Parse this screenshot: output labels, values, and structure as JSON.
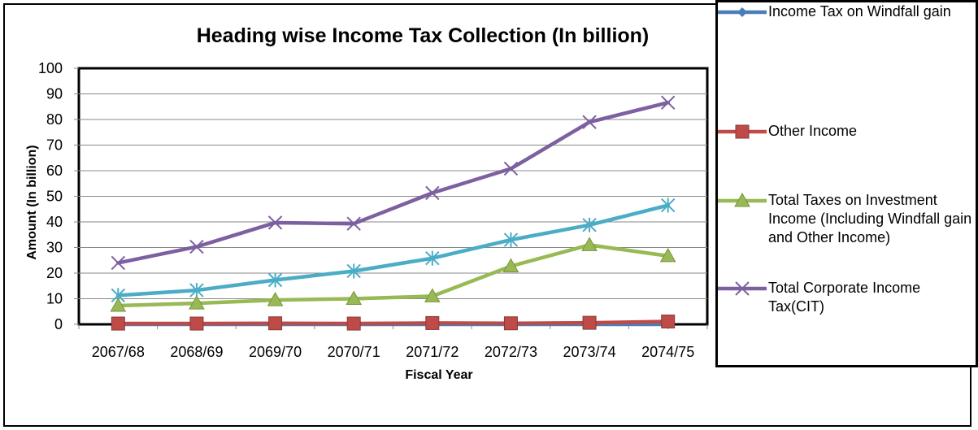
{
  "chart_data": {
    "type": "line",
    "title": "Heading wise Income Tax Collection (In billion)",
    "xlabel": "Fiscal Year",
    "ylabel": "Amount (In billion)",
    "categories": [
      "2067/68",
      "2068/69",
      "2069/70",
      "2070/71",
      "2071/72",
      "2072/73",
      "2073/74",
      "2074/75"
    ],
    "ylim": [
      0,
      100
    ],
    "yticks": [
      "0",
      "10",
      "20",
      "30",
      "40",
      "50",
      "60",
      "70",
      "80",
      "90",
      "100"
    ],
    "grid": true,
    "legend_position": "right",
    "series": [
      {
        "name": "Income Tax on Windfall gain",
        "color": "#4a7ebb",
        "marker": "diamond",
        "values": [
          0,
          0,
          0,
          0,
          0,
          0,
          0,
          0
        ]
      },
      {
        "name": "Other Income",
        "color": "#be4b48",
        "marker": "square",
        "values": [
          0.3,
          0.3,
          0.4,
          0.3,
          0.5,
          0.4,
          0.6,
          1.1
        ]
      },
      {
        "name": "Total Taxes on Investment Income (Including Windfall gain and Other Income)",
        "color": "#98b954",
        "marker": "triangle",
        "values": [
          7.3,
          8.2,
          9.5,
          10.0,
          11.0,
          22.7,
          31.0,
          26.7
        ]
      },
      {
        "name": "Total Corporate Income Tax(CIT)",
        "color": "#7d60a0",
        "marker": "x",
        "values": [
          24.0,
          30.3,
          39.7,
          39.3,
          51.3,
          60.8,
          79.0,
          86.6
        ]
      },
      {
        "color": "#4bacc6",
        "marker": "asterisk",
        "values": [
          11.3,
          13.3,
          17.3,
          20.8,
          25.8,
          33.0,
          38.8,
          46.5
        ]
      }
    ]
  }
}
